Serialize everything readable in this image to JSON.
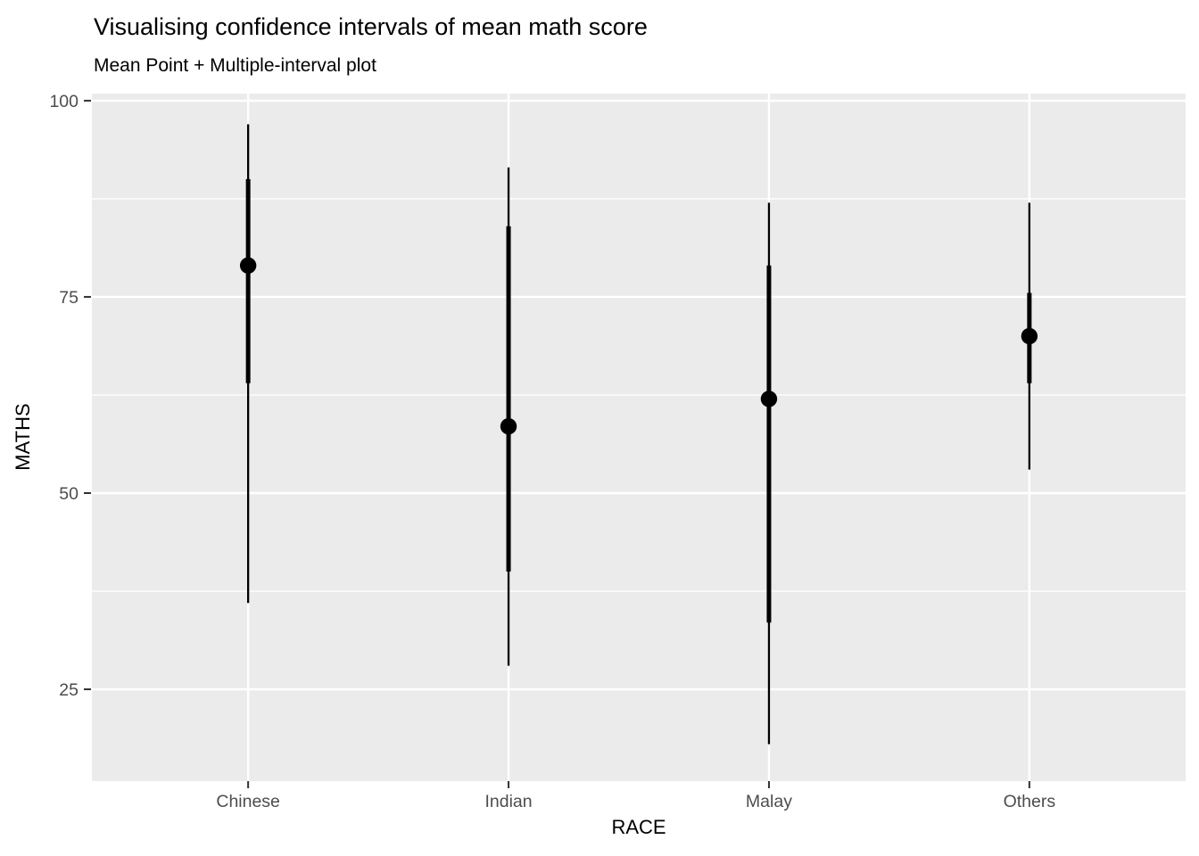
{
  "chart_data": {
    "type": "pointinterval",
    "title": "Visualising confidence intervals of mean math score",
    "subtitle": "Mean Point + Multiple-interval plot",
    "xlabel": "RACE",
    "ylabel": "MATHS",
    "categories": [
      "Chinese",
      "Indian",
      "Malay",
      "Others"
    ],
    "y_ticks": [
      25,
      50,
      75,
      100
    ],
    "y_minor_gridlines": [
      37.5,
      62.5,
      87.5
    ],
    "ylim": [
      13.3,
      100.9
    ],
    "grid": true,
    "legend": "none",
    "series": [
      {
        "category": "Chinese",
        "mean": 79,
        "inner_interval": [
          64,
          90
        ],
        "outer_interval": [
          36,
          97
        ]
      },
      {
        "category": "Indian",
        "mean": 58.5,
        "inner_interval": [
          40,
          84
        ],
        "outer_interval": [
          28,
          91.5
        ]
      },
      {
        "category": "Malay",
        "mean": 62,
        "inner_interval": [
          33.5,
          79
        ],
        "outer_interval": [
          18,
          87
        ]
      },
      {
        "category": "Others",
        "mean": 70,
        "inner_interval": [
          64,
          75.5
        ],
        "outer_interval": [
          53,
          87
        ]
      }
    ]
  },
  "colors": {
    "background": "#FFFFFF",
    "panel_background": "#EBEBEB",
    "gridline": "#FFFFFF",
    "data": "#000000",
    "tick_label": "#4D4D4D",
    "tick_mark": "#333333",
    "axis_title": "#000000",
    "title": "#000000"
  }
}
